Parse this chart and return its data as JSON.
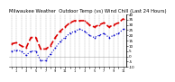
{
  "title": "Milwaukee Weather  Outdoor Temp (vs) Wind Chill (Last 24 Hours)",
  "title_fontsize": 3.8,
  "x_values": [
    0,
    1,
    2,
    3,
    4,
    5,
    6,
    7,
    8,
    9,
    10,
    11,
    12,
    13,
    14,
    15,
    16,
    17,
    18,
    19,
    20,
    21,
    22,
    23
  ],
  "temp": [
    12,
    13,
    10,
    8,
    18,
    18,
    7,
    7,
    10,
    18,
    24,
    28,
    32,
    34,
    34,
    34,
    30,
    28,
    30,
    32,
    28,
    30,
    32,
    36
  ],
  "wind_chill": [
    5,
    6,
    5,
    1,
    5,
    5,
    -4,
    -4,
    2,
    8,
    14,
    18,
    22,
    24,
    26,
    24,
    20,
    18,
    20,
    22,
    18,
    20,
    22,
    26
  ],
  "temp_color": "#dd0000",
  "wind_chill_color": "#0000cc",
  "bg_color": "#ffffff",
  "ylim": [
    -10,
    40
  ],
  "yticks": [
    -10,
    -5,
    0,
    5,
    10,
    15,
    20,
    25,
    30,
    35,
    40
  ],
  "ytick_labels": [
    "-10",
    "-5",
    "0",
    "5",
    "10",
    "15",
    "20",
    "25",
    "30",
    "35",
    "40"
  ],
  "ytick_fontsize": 3.0,
  "xtick_fontsize": 2.5,
  "grid_color": "#888888",
  "temp_lw": 1.2,
  "wc_lw": 0.8,
  "marker_size": 2.5,
  "x_tick_labels": [
    "",
    "1",
    "",
    "3",
    "",
    "5",
    "",
    "7",
    "",
    "9",
    "",
    "11",
    "",
    "1",
    "",
    "3",
    "",
    "5",
    "",
    "7",
    "",
    "9",
    "",
    "11"
  ]
}
